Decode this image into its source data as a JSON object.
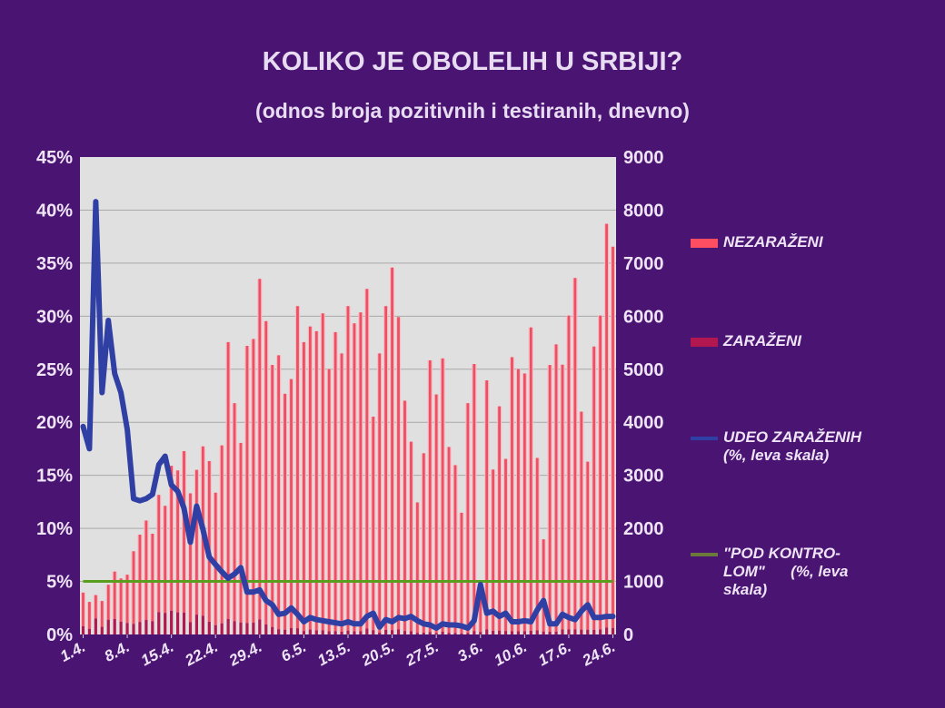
{
  "title": "KOLIKO JE OBOLELIH U SRBIJI?",
  "subtitle": "(odnos broja pozitivnih i testiranih, dnevno)",
  "colors": {
    "background": "#4a1572",
    "plot": "#e0e0e0",
    "nezarazeni": "#ee4f63",
    "zarazeni": "#b3174f",
    "udeo": "#2f3fa3",
    "pod_kontrolom": "#5a9e1e"
  },
  "legend": [
    {
      "lines": [
        "NEZARAŽENI"
      ],
      "color": "#ff4d62",
      "kind": "bar"
    },
    {
      "lines": [
        "ZARAŽENI"
      ],
      "color": "#b3174f",
      "kind": "bar"
    },
    {
      "lines": [
        "UDEO ZARAŽENIH",
        "(%, leva skala)"
      ],
      "color": "#2f3fa3",
      "kind": "line"
    },
    {
      "lines": [
        "\"POD KONTRO-",
        "LOM\"      (%, leva",
        "skala)"
      ],
      "color": "#6b7a3a",
      "kind": "line"
    }
  ],
  "chart_data": {
    "type": "bar",
    "stacked": true,
    "title": "KOLIKO JE OBOLELIH U SRBIJI?",
    "subtitle": "(odnos broja pozitivnih i testiranih, dnevno)",
    "xticks": [
      "1.4.",
      "8.4.",
      "15.4.",
      "22.4.",
      "29.4.",
      "6.5.",
      "13.5.",
      "20.5.",
      "27.5.",
      "3.6.",
      "10.6.",
      "17.6.",
      "24.6."
    ],
    "xtick_every": 7,
    "y_left": {
      "ticks": [
        "0%",
        "5%",
        "10%",
        "15%",
        "20%",
        "25%",
        "30%",
        "35%",
        "40%",
        "45%"
      ],
      "range": [
        0,
        45
      ]
    },
    "y_right": {
      "ticks": [
        "0",
        "1000",
        "2000",
        "3000",
        "4000",
        "5000",
        "6000",
        "7000",
        "8000",
        "9000"
      ],
      "range": [
        0,
        9000
      ]
    },
    "grid": true,
    "legend_position": "right",
    "series": [
      {
        "name": "NEZARAŽENI",
        "axis": "right",
        "type": "bar",
        "values": [
          635,
          507,
          440,
          487,
          660,
          894,
          815,
          909,
          1368,
          1645,
          1873,
          1649,
          2210,
          2018,
          2732,
          2675,
          3046,
          2429,
          2728,
          3195,
          3030,
          2497,
          3354,
          5219,
          4111,
          3384,
          5222,
          5347,
          6421,
          5717,
          4938,
          5163,
          4446,
          4694,
          6072,
          5445,
          5713,
          5637,
          5974,
          4943,
          5636,
          5245,
          6116,
          5806,
          6010,
          6403,
          4024,
          5261,
          6103,
          6833,
          5887,
          4341,
          3572,
          2458,
          3382,
          5121,
          4498,
          5152,
          3502,
          3163,
          2277,
          4334,
          5032,
          953,
          4694,
          3041,
          4228,
          3244,
          5165,
          4943,
          4856,
          5719,
          3251,
          1737,
          5029,
          5414,
          4989,
          5916,
          6626,
          4108,
          3166,
          5341,
          5916,
          7609,
          7186
        ]
      },
      {
        "name": "ZARAŽENI",
        "axis": "right",
        "type": "bar",
        "values": [
          155,
          107,
          303,
          144,
          278,
          292,
          241,
          218,
          201,
          237,
          275,
          251,
          421,
          407,
          448,
          417,
          411,
          232,
          375,
          351,
          239,
          176,
          210,
          292,
          249,
          227,
          218,
          223,
          282,
          189,
          142,
          100,
          91,
          120,
          118,
          66,
          93,
          80,
          79,
          60,
          63,
          53,
          74,
          59,
          61,
          111,
          82,
          37,
          87,
          83,
          96,
          66,
          62,
          32,
          34,
          47,
          27,
          52,
          32,
          29,
          18,
          26,
          66,
          47,
          96,
          68,
          73,
          66,
          63,
          60,
          64,
          69,
          77,
          57,
          51,
          55,
          97,
          96,
          94,
          92,
          91,
          87,
          96,
          132,
          124
        ]
      },
      {
        "name": "UDEO ZARAŽENIH (%, leva skala)",
        "axis": "left",
        "type": "line",
        "values": [
          19.6,
          17.5,
          40.8,
          22.8,
          29.6,
          24.6,
          22.8,
          19.3,
          12.8,
          12.6,
          12.8,
          13.2,
          16.0,
          16.8,
          14.1,
          13.5,
          11.9,
          8.7,
          12.1,
          9.9,
          7.3,
          6.6,
          5.9,
          5.3,
          5.7,
          6.3,
          4.0,
          4.0,
          4.2,
          3.2,
          2.8,
          1.9,
          2.0,
          2.5,
          1.9,
          1.2,
          1.6,
          1.4,
          1.3,
          1.2,
          1.1,
          1.0,
          1.2,
          1.0,
          1.0,
          1.7,
          2.0,
          0.7,
          1.4,
          1.2,
          1.6,
          1.5,
          1.7,
          1.3,
          1.0,
          0.9,
          0.6,
          1.0,
          0.9,
          0.9,
          0.8,
          0.6,
          1.3,
          4.7,
          2.0,
          2.2,
          1.7,
          2.0,
          1.2,
          1.2,
          1.3,
          1.2,
          2.3,
          3.2,
          1.0,
          1.0,
          1.9,
          1.6,
          1.4,
          2.2,
          2.8,
          1.6,
          1.6,
          1.7,
          1.7
        ]
      },
      {
        "name": "\"POD KONTRO-LOM\" (%, leva skala)",
        "axis": "left",
        "type": "line",
        "constant": 5
      }
    ]
  }
}
